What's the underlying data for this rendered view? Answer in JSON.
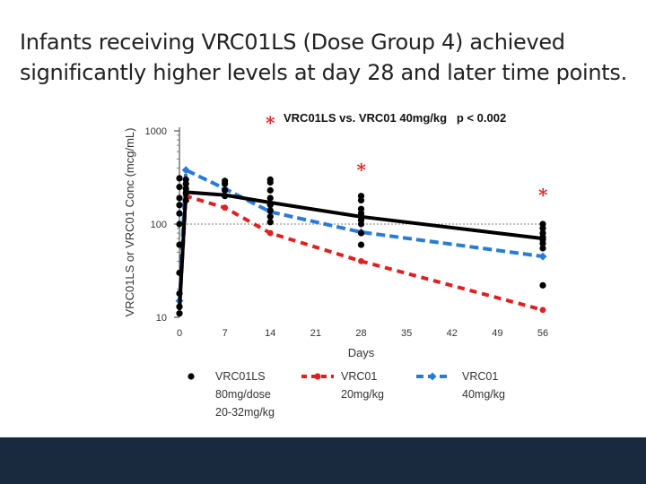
{
  "slide": {
    "title_line1": "Infants receiving VRC01LS (Dose Group 4) achieved",
    "title_line2": "significantly higher levels at day 28 and later time points."
  },
  "chart_data": {
    "type": "line",
    "ylabel": "VRC01LS or VRC01 Conc (mcg/mL)",
    "xlabel": "Days",
    "yscale": "log",
    "ylim": [
      10,
      1000
    ],
    "xlim": [
      0,
      56
    ],
    "xticks": [
      0,
      7,
      14,
      21,
      28,
      35,
      42,
      49,
      56
    ],
    "yticks": [
      10,
      100,
      1000
    ],
    "reference_line_y": 100,
    "annotation": {
      "marker": "*",
      "text": "VRC01LS vs. VRC01 40mg/kg   p < 0.002"
    },
    "significance_markers": [
      {
        "x": 28,
        "y": 390,
        "label": "*"
      },
      {
        "x": 56,
        "y": 210,
        "label": "*"
      }
    ],
    "series": [
      {
        "name": "VRC01LS 80mg/dose 20-32mg/kg",
        "legend_lines": [
          "VRC01LS",
          "80mg/dose",
          "20-32mg/kg"
        ],
        "color": "#000000",
        "style": "solid",
        "marker": "circle",
        "x": [
          0,
          1,
          7,
          14,
          28,
          56
        ],
        "values": [
          12,
          220,
          205,
          170,
          120,
          70
        ],
        "points": [
          [
            0,
            11
          ],
          [
            0,
            13
          ],
          [
            0,
            18
          ],
          [
            0,
            30
          ],
          [
            0,
            60
          ],
          [
            0,
            100
          ],
          [
            0,
            130
          ],
          [
            0,
            160
          ],
          [
            0,
            190
          ],
          [
            0,
            250
          ],
          [
            0,
            310
          ],
          [
            1,
            180
          ],
          [
            1,
            215
          ],
          [
            1,
            240
          ],
          [
            1,
            270
          ],
          [
            1,
            300
          ],
          [
            7,
            200
          ],
          [
            7,
            230
          ],
          [
            7,
            270
          ],
          [
            7,
            290
          ],
          [
            14,
            105
          ],
          [
            14,
            120
          ],
          [
            14,
            140
          ],
          [
            14,
            160
          ],
          [
            14,
            190
          ],
          [
            14,
            230
          ],
          [
            14,
            280
          ],
          [
            14,
            300
          ],
          [
            28,
            60
          ],
          [
            28,
            80
          ],
          [
            28,
            100
          ],
          [
            28,
            110
          ],
          [
            28,
            120
          ],
          [
            28,
            130
          ],
          [
            28,
            145
          ],
          [
            28,
            180
          ],
          [
            28,
            200
          ],
          [
            56,
            22
          ],
          [
            56,
            55
          ],
          [
            56,
            62
          ],
          [
            56,
            68
          ],
          [
            56,
            72
          ],
          [
            56,
            80
          ],
          [
            56,
            90
          ],
          [
            56,
            100
          ]
        ]
      },
      {
        "name": "VRC01 20mg/kg",
        "legend_lines": [
          "VRC01",
          "20mg/kg"
        ],
        "color": "#e02020",
        "style": "dashed",
        "marker": "circle",
        "x": [
          0,
          1,
          7,
          14,
          28,
          56
        ],
        "values": [
          12,
          200,
          150,
          80,
          40,
          12
        ],
        "points": [
          [
            1,
            200
          ],
          [
            7,
            150
          ],
          [
            14,
            80
          ],
          [
            28,
            40
          ],
          [
            56,
            12
          ]
        ]
      },
      {
        "name": "VRC01 40mg/kg",
        "legend_lines": [
          "VRC01",
          "40mg/kg"
        ],
        "color": "#2a7ad8",
        "style": "dashed",
        "marker": "diamond",
        "x": [
          0,
          1,
          7,
          14,
          28,
          56
        ],
        "values": [
          14,
          380,
          240,
          135,
          82,
          45
        ],
        "points": [
          [
            0,
            15
          ],
          [
            1,
            380
          ],
          [
            7,
            240
          ],
          [
            14,
            135
          ],
          [
            28,
            82
          ],
          [
            56,
            45
          ]
        ]
      }
    ]
  }
}
